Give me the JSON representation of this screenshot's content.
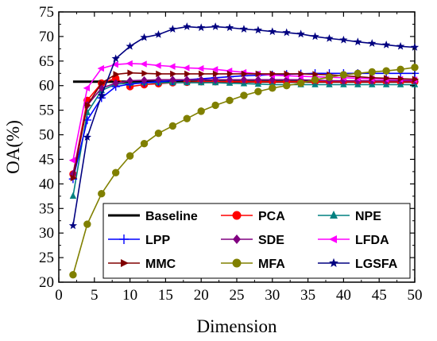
{
  "chart_data": {
    "type": "line",
    "title": "",
    "xlabel": "Dimension",
    "ylabel": "OA(%)",
    "xlim": [
      0,
      50
    ],
    "ylim": [
      20,
      75
    ],
    "xticks": [
      0,
      5,
      10,
      15,
      20,
      25,
      30,
      35,
      40,
      45,
      50
    ],
    "yticks": [
      20,
      25,
      30,
      35,
      40,
      45,
      50,
      55,
      60,
      65,
      70,
      75
    ],
    "grid": false,
    "legend_position": "bottom",
    "x": [
      2,
      4,
      6,
      8,
      10,
      12,
      14,
      16,
      18,
      20,
      22,
      24,
      26,
      28,
      30,
      32,
      34,
      36,
      38,
      40,
      42,
      44,
      46,
      48,
      50
    ],
    "series": [
      {
        "name": "Baseline",
        "color": "#000000",
        "marker": "none",
        "values": [
          60.8,
          60.8,
          60.8,
          60.8,
          60.8,
          60.8,
          60.8,
          60.8,
          60.8,
          60.8,
          60.8,
          60.8,
          60.8,
          60.8,
          60.8,
          60.8,
          60.8,
          60.8,
          60.8,
          60.8,
          60.8,
          60.8,
          60.8,
          60.8,
          60.8
        ]
      },
      {
        "name": "PCA",
        "color": "#ff0000",
        "marker": "circle",
        "values": [
          42.0,
          57.0,
          60.5,
          61.5,
          59.8,
          60.2,
          60.4,
          60.6,
          60.7,
          60.8,
          60.8,
          60.8,
          60.8,
          60.8,
          60.8,
          60.8,
          60.8,
          60.8,
          60.8,
          60.8,
          60.8,
          60.8,
          60.8,
          60.8,
          60.8
        ]
      },
      {
        "name": "NPE",
        "color": "#008080",
        "marker": "triangle-up",
        "values": [
          37.5,
          54.5,
          59.0,
          60.3,
          60.5,
          60.6,
          60.6,
          60.6,
          60.6,
          60.6,
          60.6,
          60.5,
          60.4,
          60.3,
          60.2,
          60.2,
          60.2,
          60.2,
          60.2,
          60.2,
          60.2,
          60.2,
          60.2,
          60.2,
          60.2
        ]
      },
      {
        "name": "LPP",
        "color": "#0000ff",
        "marker": "plus",
        "values": [
          41.0,
          53.0,
          57.5,
          59.8,
          60.3,
          60.6,
          60.8,
          61.0,
          61.2,
          61.4,
          61.6,
          61.8,
          62.0,
          62.1,
          62.2,
          62.3,
          62.4,
          62.5,
          62.5,
          62.5,
          62.5,
          62.5,
          62.5,
          62.5,
          62.5
        ]
      },
      {
        "name": "SDE",
        "color": "#800080",
        "marker": "diamond",
        "values": [
          42.0,
          56.0,
          59.5,
          60.5,
          61.0,
          61.1,
          61.2,
          61.2,
          61.2,
          61.2,
          61.2,
          61.2,
          61.2,
          61.2,
          61.2,
          61.2,
          61.2,
          61.1,
          61.0,
          61.0,
          61.0,
          61.0,
          61.0,
          61.0,
          61.0
        ]
      },
      {
        "name": "LFDA",
        "color": "#ff00ff",
        "marker": "triangle-left",
        "values": [
          44.8,
          59.5,
          63.5,
          64.3,
          64.5,
          64.4,
          64.1,
          63.9,
          63.6,
          63.5,
          63.3,
          63.0,
          62.7,
          62.4,
          62.1,
          62.0,
          61.9,
          61.8,
          61.7,
          61.6,
          61.5,
          61.4,
          61.3,
          61.3,
          61.2
        ]
      },
      {
        "name": "MMC",
        "color": "#800000",
        "marker": "triangle-right",
        "values": [
          41.2,
          56.0,
          60.5,
          62.3,
          62.6,
          62.5,
          62.4,
          62.4,
          62.4,
          62.4,
          62.4,
          62.4,
          62.4,
          62.4,
          62.4,
          62.4,
          62.4,
          62.3,
          62.2,
          62.0,
          61.8,
          61.6,
          61.5,
          61.4,
          61.3
        ]
      },
      {
        "name": "MFA",
        "color": "#808000",
        "marker": "circle",
        "values": [
          21.5,
          31.8,
          38.0,
          42.3,
          45.7,
          48.2,
          50.3,
          51.8,
          53.3,
          54.8,
          56.0,
          57.0,
          58.0,
          58.8,
          59.5,
          60.0,
          60.5,
          61.2,
          61.7,
          62.2,
          62.5,
          62.8,
          63.0,
          63.3,
          63.7
        ]
      },
      {
        "name": "LGSFA",
        "color": "#000080",
        "marker": "star",
        "values": [
          31.5,
          49.5,
          58.0,
          65.5,
          68.0,
          69.8,
          70.4,
          71.5,
          72.0,
          71.8,
          72.0,
          71.8,
          71.5,
          71.3,
          71.0,
          70.8,
          70.5,
          70.0,
          69.6,
          69.3,
          68.9,
          68.6,
          68.3,
          68.0,
          67.8
        ]
      }
    ]
  }
}
